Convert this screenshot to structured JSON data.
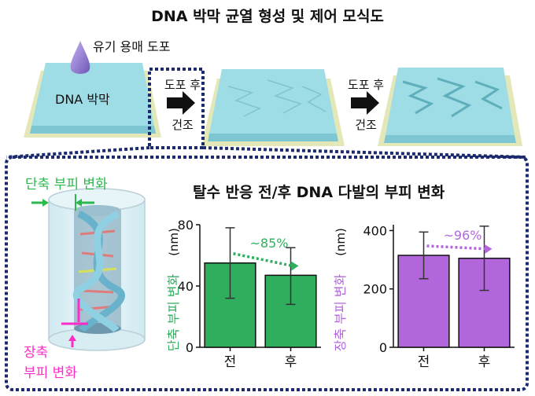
{
  "title": "DNA 박막 균열 형성 및 제어 모식도",
  "top_diagram": {
    "solvent_label": "유기 용매 도포",
    "film_label": "DNA 박막",
    "step1": {
      "line1": "도포 후",
      "line2": "건조"
    },
    "step2": {
      "line1": "도포 후",
      "line2": "건조"
    }
  },
  "bottom_panel": {
    "title": "탈수 반응 전/후 DNA 다발의 부피 변화",
    "lateral_label": "단축 부피 변화",
    "longitudinal_label_line1": "장축",
    "longitudinal_label_line2": "부피 변화"
  },
  "colors": {
    "film": "#9fdde6",
    "substrate": "#e4e8b8",
    "lateral": "#2db84d",
    "longitudinal": "#ff2bc8",
    "bar_green": "#2fae5e",
    "bar_purple": "#b266db",
    "dotted_border": "#1c2a6e"
  },
  "chart_data": [
    {
      "type": "bar",
      "categories": [
        "전",
        "후"
      ],
      "values": [
        55,
        47
      ],
      "error": [
        [
          32,
          78
        ],
        [
          28,
          65
        ]
      ],
      "ylabel": "단축 부피 변화",
      "yunit": "(nm)",
      "ylim": [
        0,
        80
      ],
      "yticks": [
        0,
        40,
        80
      ],
      "annotation": "~85%",
      "color": "#2fae5e"
    },
    {
      "type": "bar",
      "categories": [
        "전",
        "후"
      ],
      "values": [
        315,
        305
      ],
      "error": [
        [
          235,
          395
        ],
        [
          195,
          415
        ]
      ],
      "ylabel": "장축 부피 변화",
      "yunit": "(nm)",
      "ylim": [
        0,
        420
      ],
      "yticks": [
        0,
        200,
        400
      ],
      "annotation": "~96%",
      "color": "#b266db"
    }
  ]
}
